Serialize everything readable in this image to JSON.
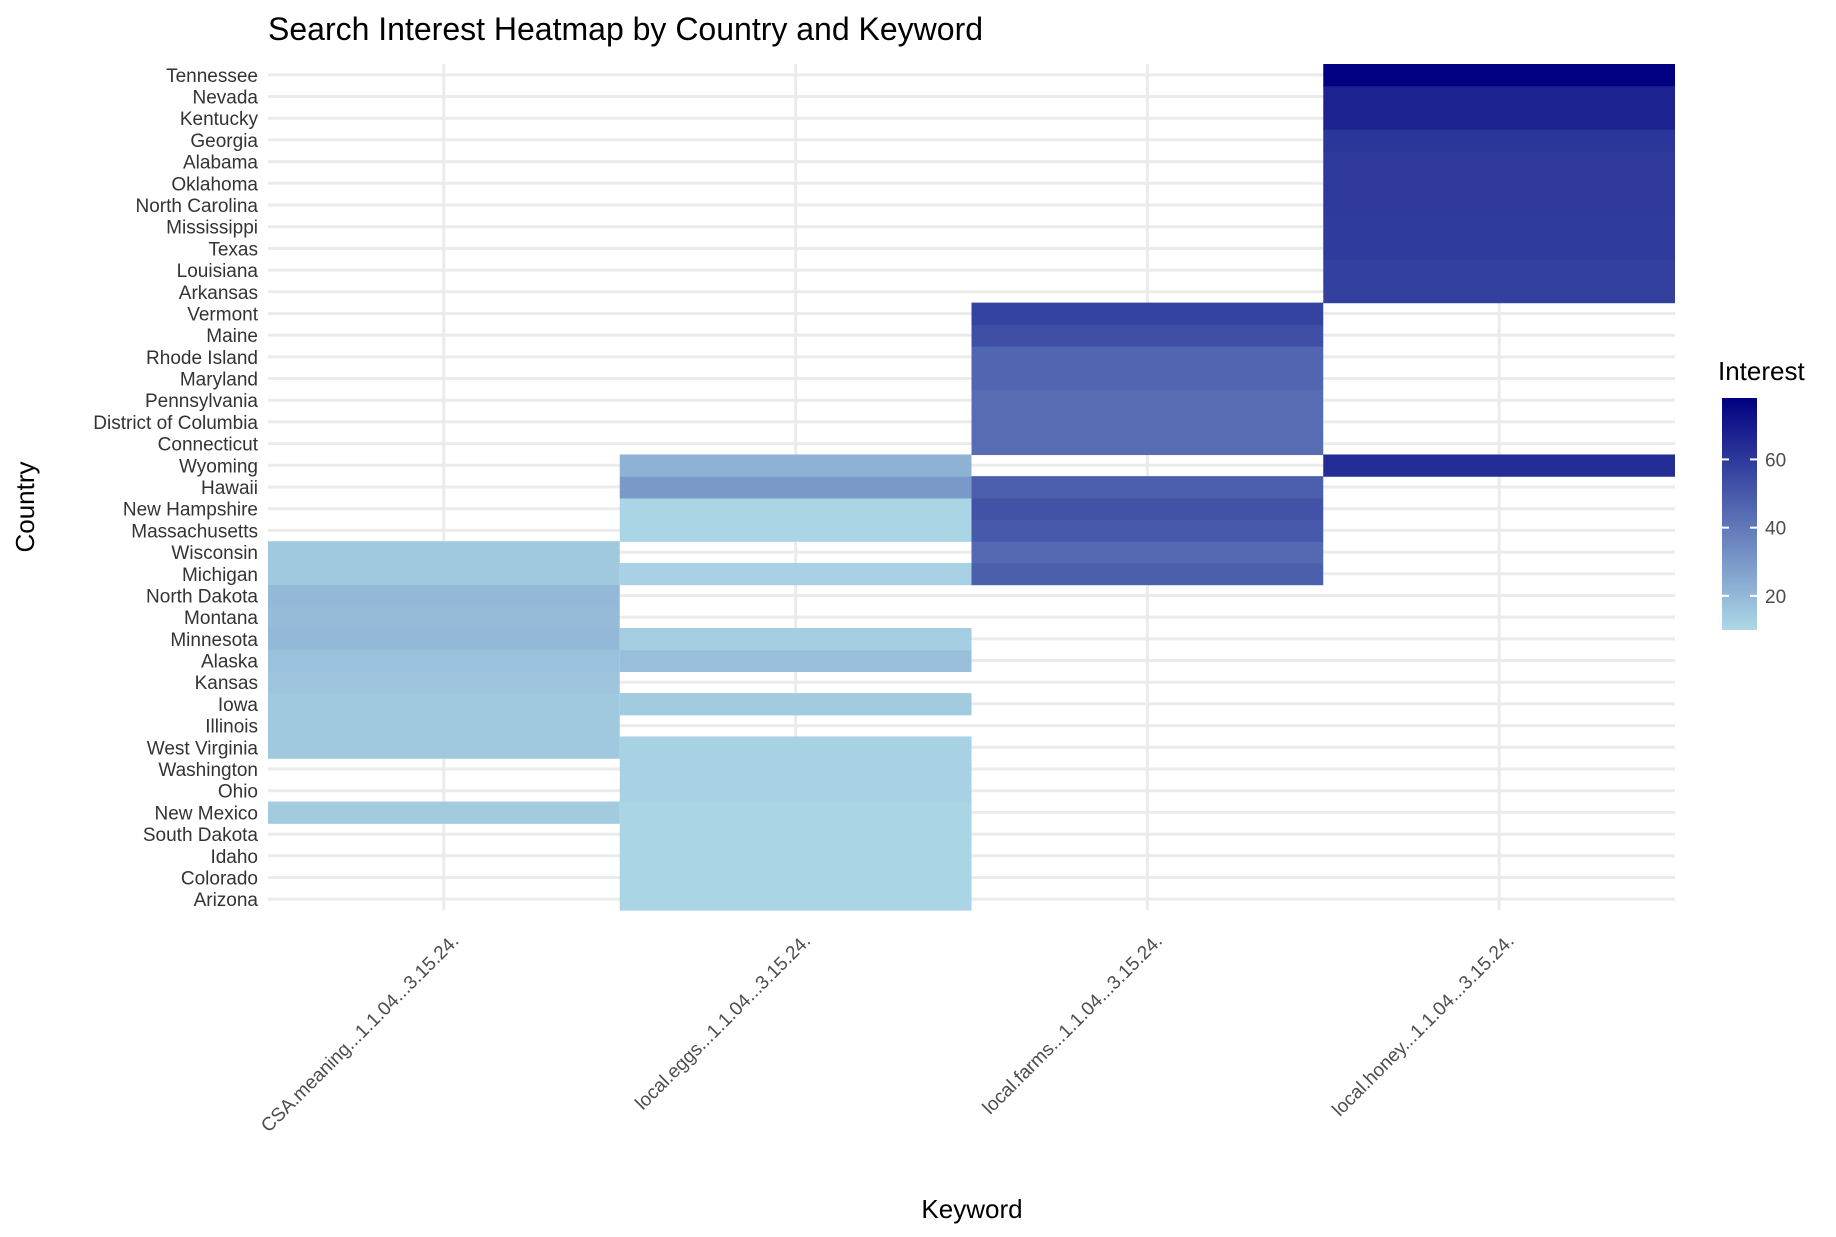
{
  "chart_data": {
    "type": "heatmap",
    "title": "Search Interest Heatmap by Country and Keyword",
    "xlabel": "Keyword",
    "ylabel": "Country",
    "x": [
      "CSA.meaning...1.1.04...3.15.24.",
      "local.eggs...1.1.04...3.15.24.",
      "local.farms...1.1.04...3.15.24.",
      "local.honey...1.1.04...3.15.24."
    ],
    "y": [
      "Arizona",
      "Colorado",
      "Idaho",
      "South Dakota",
      "New Mexico",
      "Ohio",
      "Washington",
      "West Virginia",
      "Illinois",
      "Iowa",
      "Kansas",
      "Alaska",
      "Minnesota",
      "Montana",
      "North Dakota",
      "Michigan",
      "Wisconsin",
      "Massachusetts",
      "New Hampshire",
      "Hawaii",
      "Wyoming",
      "Connecticut",
      "District of Columbia",
      "Pennsylvania",
      "Maryland",
      "Rhode Island",
      "Maine",
      "Vermont",
      "Arkansas",
      "Louisiana",
      "Texas",
      "Mississippi",
      "North Carolina",
      "Oklahoma",
      "Alabama",
      "Georgia",
      "Kentucky",
      "Nevada",
      "Tennessee"
    ],
    "legend": {
      "title": "Interest",
      "ticks": [
        20,
        40,
        60
      ],
      "min": 10,
      "max": 78,
      "low_color": "#add8e6",
      "high_color": "#000080",
      "position": "right"
    },
    "grid": true,
    "cells": [
      [
        "Arizona",
        "local.eggs...1.1.04...3.15.24.",
        11
      ],
      [
        "Colorado",
        "local.eggs...1.1.04...3.15.24.",
        11
      ],
      [
        "Idaho",
        "local.eggs...1.1.04...3.15.24.",
        11
      ],
      [
        "South Dakota",
        "local.eggs...1.1.04...3.15.24.",
        11
      ],
      [
        "New Mexico",
        "local.eggs...1.1.04...3.15.24.",
        11
      ],
      [
        "New Mexico",
        "CSA.meaning...1.1.04...3.15.24.",
        14
      ],
      [
        "Ohio",
        "local.eggs...1.1.04...3.15.24.",
        12
      ],
      [
        "Washington",
        "local.eggs...1.1.04...3.15.24.",
        12
      ],
      [
        "West Virginia",
        "local.eggs...1.1.04...3.15.24.",
        12
      ],
      [
        "West Virginia",
        "CSA.meaning...1.1.04...3.15.24.",
        15
      ],
      [
        "Illinois",
        "CSA.meaning...1.1.04...3.15.24.",
        15
      ],
      [
        "Iowa",
        "CSA.meaning...1.1.04...3.15.24.",
        15
      ],
      [
        "Iowa",
        "local.eggs...1.1.04...3.15.24.",
        14
      ],
      [
        "Kansas",
        "CSA.meaning...1.1.04...3.15.24.",
        16
      ],
      [
        "Alaska",
        "CSA.meaning...1.1.04...3.15.24.",
        17
      ],
      [
        "Alaska",
        "local.eggs...1.1.04...3.15.24.",
        18
      ],
      [
        "Minnesota",
        "CSA.meaning...1.1.04...3.15.24.",
        20
      ],
      [
        "Minnesota",
        "local.eggs...1.1.04...3.15.24.",
        13
      ],
      [
        "Montana",
        "CSA.meaning...1.1.04...3.15.24.",
        19
      ],
      [
        "North Dakota",
        "CSA.meaning...1.1.04...3.15.24.",
        20
      ],
      [
        "Michigan",
        "CSA.meaning...1.1.04...3.15.24.",
        15
      ],
      [
        "Michigan",
        "local.eggs...1.1.04...3.15.24.",
        12
      ],
      [
        "Michigan",
        "local.farms...1.1.04...3.15.24.",
        48
      ],
      [
        "Wisconsin",
        "CSA.meaning...1.1.04...3.15.24.",
        15
      ],
      [
        "Wisconsin",
        "local.farms...1.1.04...3.15.24.",
        45
      ],
      [
        "Massachusetts",
        "local.eggs...1.1.04...3.15.24.",
        11
      ],
      [
        "Massachusetts",
        "local.farms...1.1.04...3.15.24.",
        50
      ],
      [
        "New Hampshire",
        "local.eggs...1.1.04...3.15.24.",
        11
      ],
      [
        "New Hampshire",
        "local.farms...1.1.04...3.15.24.",
        52
      ],
      [
        "Hawaii",
        "local.eggs...1.1.04...3.15.24.",
        30
      ],
      [
        "Hawaii",
        "local.farms...1.1.04...3.15.24.",
        48
      ],
      [
        "Wyoming",
        "local.eggs...1.1.04...3.15.24.",
        22
      ],
      [
        "Wyoming",
        "local.honey...1.1.04...3.15.24.",
        64
      ],
      [
        "Connecticut",
        "local.farms...1.1.04...3.15.24.",
        44
      ],
      [
        "District of Columbia",
        "local.farms...1.1.04...3.15.24.",
        44
      ],
      [
        "Pennsylvania",
        "local.farms...1.1.04...3.15.24.",
        44
      ],
      [
        "Maryland",
        "local.farms...1.1.04...3.15.24.",
        46
      ],
      [
        "Rhode Island",
        "local.farms...1.1.04...3.15.24.",
        46
      ],
      [
        "Maine",
        "local.farms...1.1.04...3.15.24.",
        53
      ],
      [
        "Vermont",
        "local.farms...1.1.04...3.15.24.",
        57
      ],
      [
        "Arkansas",
        "local.honey...1.1.04...3.15.24.",
        58
      ],
      [
        "Louisiana",
        "local.honey...1.1.04...3.15.24.",
        58
      ],
      [
        "Texas",
        "local.honey...1.1.04...3.15.24.",
        59
      ],
      [
        "Mississippi",
        "local.honey...1.1.04...3.15.24.",
        59
      ],
      [
        "North Carolina",
        "local.honey...1.1.04...3.15.24.",
        60
      ],
      [
        "Oklahoma",
        "local.honey...1.1.04...3.15.24.",
        60
      ],
      [
        "Alabama",
        "local.honey...1.1.04...3.15.24.",
        60
      ],
      [
        "Georgia",
        "local.honey...1.1.04...3.15.24.",
        61
      ],
      [
        "Kentucky",
        "local.honey...1.1.04...3.15.24.",
        67
      ],
      [
        "Nevada",
        "local.honey...1.1.04...3.15.24.",
        67
      ],
      [
        "Tennessee",
        "local.honey...1.1.04...3.15.24.",
        78
      ]
    ]
  }
}
